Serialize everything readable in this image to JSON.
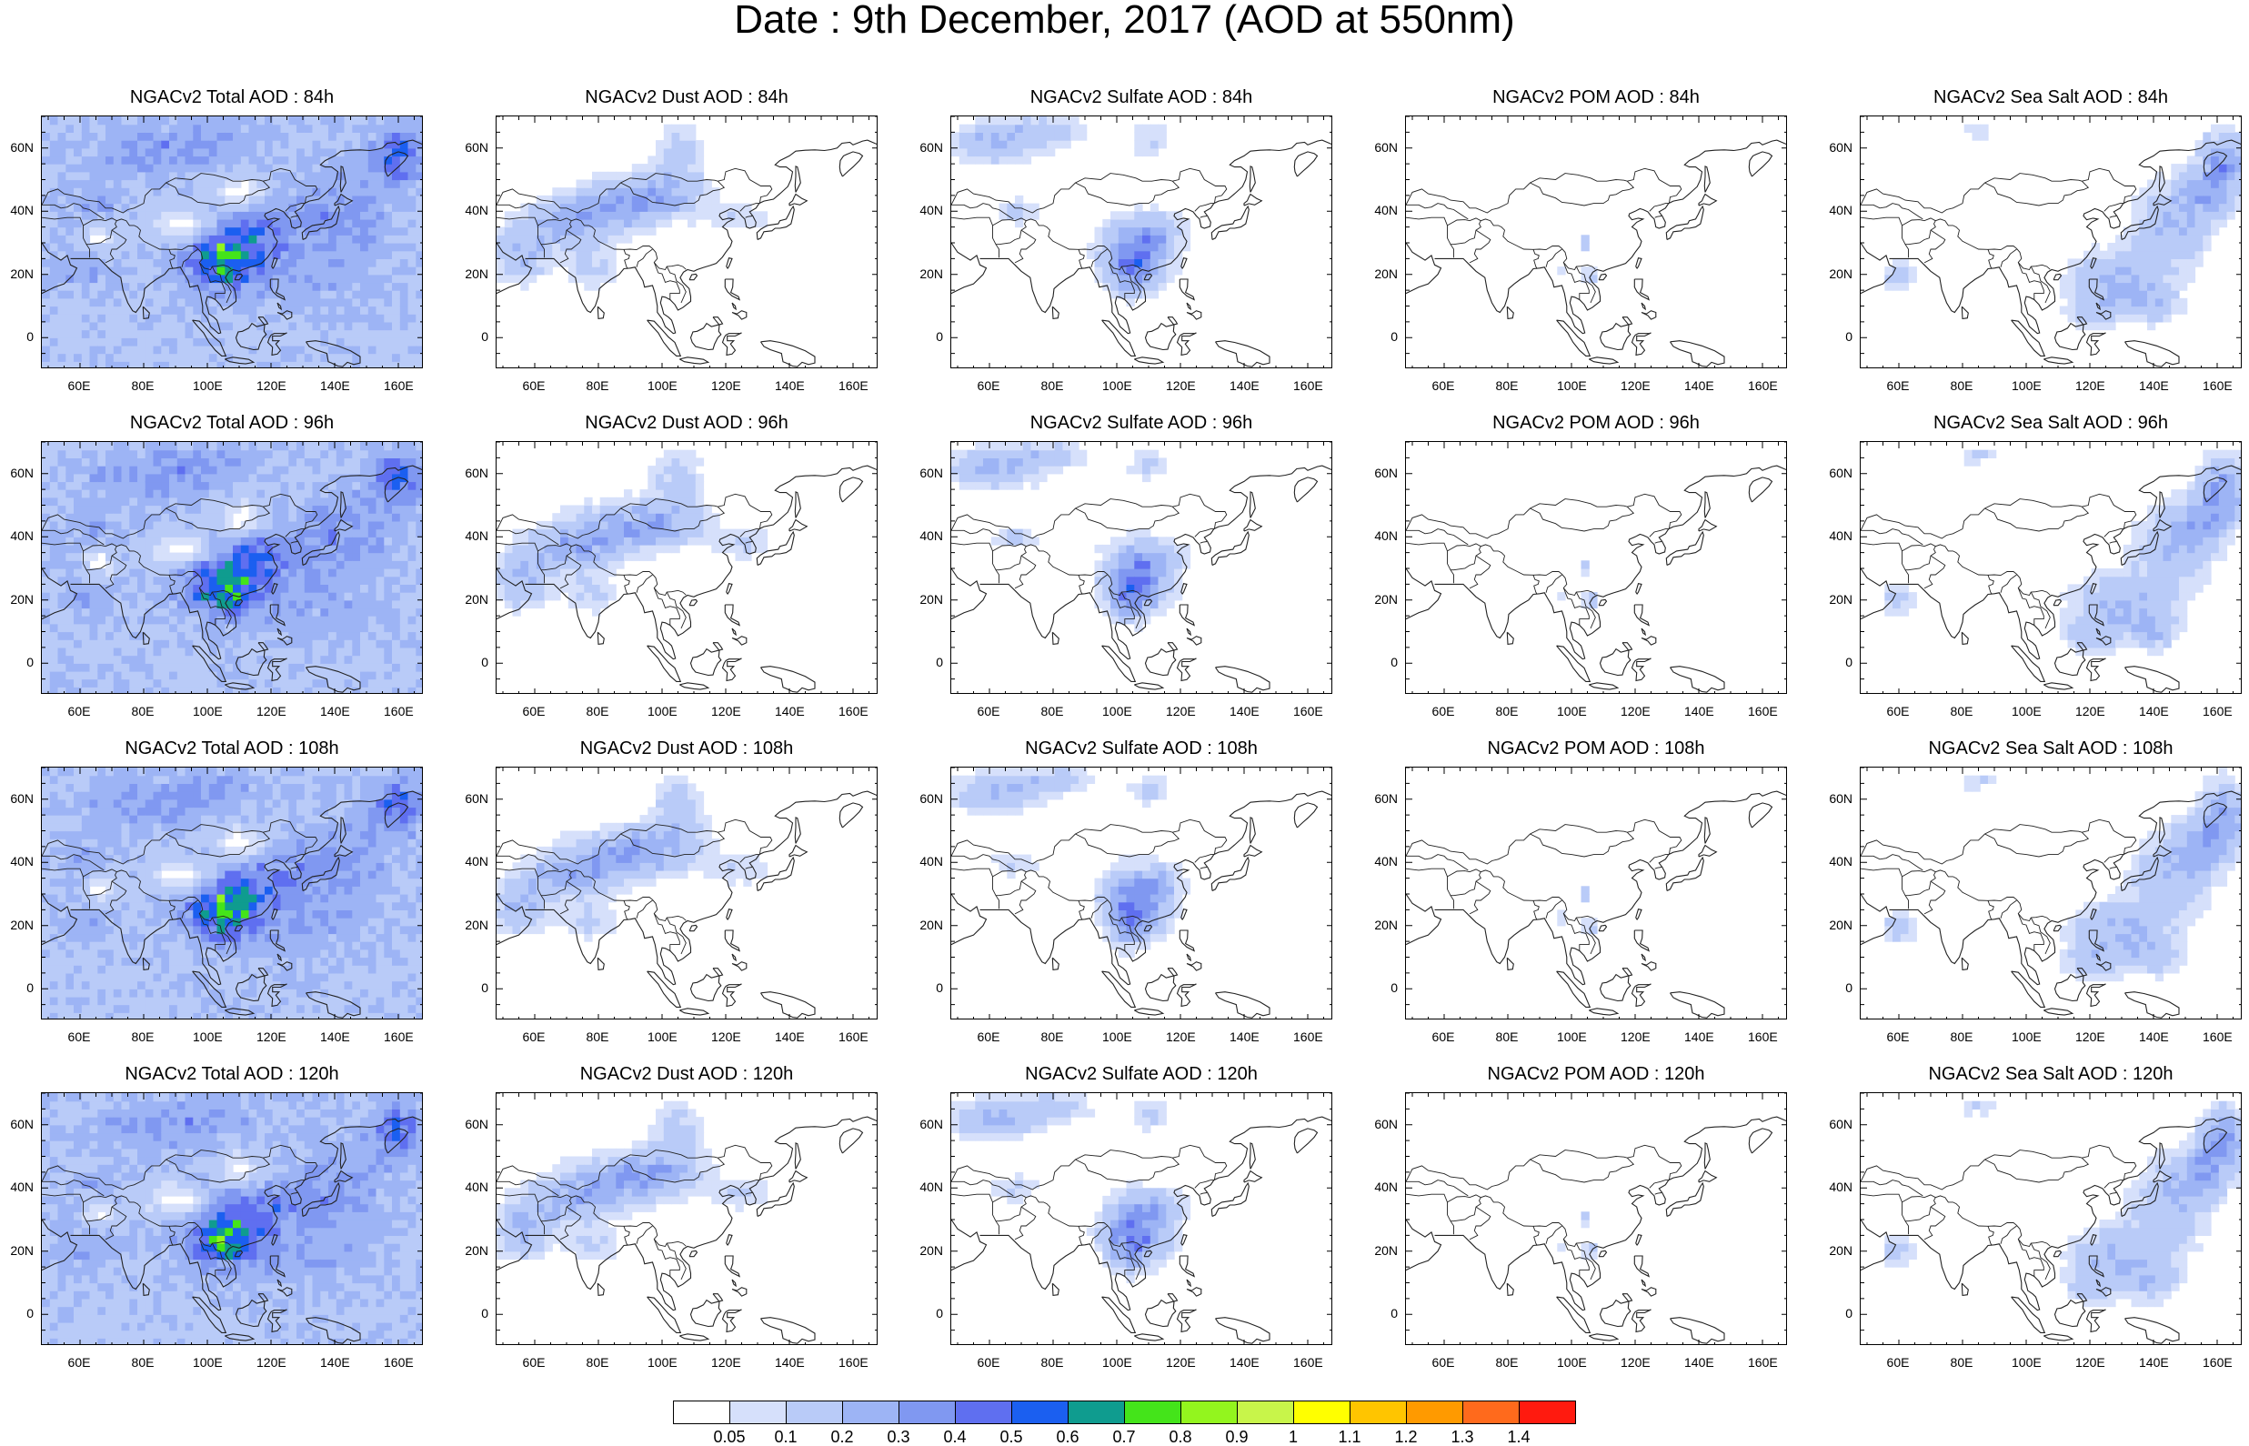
{
  "title": "Date : 9th December, 2017 (AOD at 550nm)",
  "x_ticks": [
    "60E",
    "80E",
    "100E",
    "120E",
    "140E",
    "160E"
  ],
  "y_ticks": [
    "60N",
    "40N",
    "20N",
    "0"
  ],
  "colorbar": {
    "labels": [
      "0.05",
      "0.1",
      "0.2",
      "0.3",
      "0.4",
      "0.5",
      "0.6",
      "0.7",
      "0.8",
      "0.9",
      "1",
      "1.1",
      "1.2",
      "1.3",
      "1.4"
    ],
    "colors": [
      "#ffffff",
      "#d6e0fb",
      "#b9cbf8",
      "#9db4f5",
      "#8098f1",
      "#5f6ff0",
      "#1b5ff0",
      "#0f9c8f",
      "#44e41a",
      "#93f51e",
      "#c8f54a",
      "#ffff00",
      "#ffc500",
      "#ff9a00",
      "#ff6a1c",
      "#ff1a0f"
    ]
  },
  "panels": [
    {
      "title": "NGACv2 Total AOD : 84h",
      "species": "total"
    },
    {
      "title": "NGACv2 Dust AOD : 84h",
      "species": "dust"
    },
    {
      "title": "NGACv2 Sulfate AOD : 84h",
      "species": "sulfate"
    },
    {
      "title": "NGACv2 POM AOD : 84h",
      "species": "pom"
    },
    {
      "title": "NGACv2 Sea Salt AOD : 84h",
      "species": "seasalt"
    },
    {
      "title": "NGACv2 Total AOD : 96h",
      "species": "total"
    },
    {
      "title": "NGACv2 Dust AOD : 96h",
      "species": "dust"
    },
    {
      "title": "NGACv2 Sulfate AOD : 96h",
      "species": "sulfate"
    },
    {
      "title": "NGACv2 POM AOD : 96h",
      "species": "pom"
    },
    {
      "title": "NGACv2 Sea Salt AOD : 96h",
      "species": "seasalt"
    },
    {
      "title": "NGACv2 Total AOD : 108h",
      "species": "total"
    },
    {
      "title": "NGACv2 Dust AOD : 108h",
      "species": "dust"
    },
    {
      "title": "NGACv2 Sulfate AOD : 108h",
      "species": "sulfate"
    },
    {
      "title": "NGACv2 POM AOD : 108h",
      "species": "pom"
    },
    {
      "title": "NGACv2 Sea Salt AOD : 108h",
      "species": "seasalt"
    },
    {
      "title": "NGACv2 Total AOD : 120h",
      "species": "total"
    },
    {
      "title": "NGACv2 Dust AOD : 120h",
      "species": "dust"
    },
    {
      "title": "NGACv2 Sulfate AOD : 120h",
      "species": "sulfate"
    },
    {
      "title": "NGACv2 POM AOD : 120h",
      "species": "pom"
    },
    {
      "title": "NGACv2 Sea Salt  AOD : 120h",
      "species": "seasalt"
    }
  ]
}
